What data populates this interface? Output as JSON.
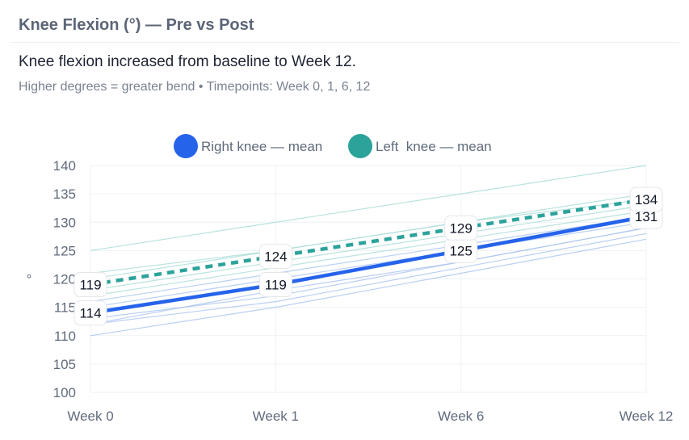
{
  "card": {
    "title": "Knee Flexion (°) — Pre vs Post",
    "subtitle": "Knee flexion increased from baseline to Week 12.",
    "caption": "Higher degrees = greater bend • Timepoints: Week 0, 1, 6, 12"
  },
  "chart_data": {
    "type": "line",
    "title": "Knee Flexion (°) — Pre vs Post",
    "categories": [
      "Week 0",
      "Week 1",
      "Week 6",
      "Week 12"
    ],
    "ylim": [
      100,
      140
    ],
    "yticks": [
      100,
      105,
      110,
      115,
      120,
      125,
      130,
      135,
      140
    ],
    "ylabel": "°",
    "grid": true,
    "legend_position": "top-center",
    "series": [
      {
        "name": "Right knee — mean",
        "color": "#2563eb",
        "style": "solid",
        "values": [
          114,
          119,
          125,
          131
        ]
      },
      {
        "name": "Left  knee — mean",
        "color": "#2ca39a",
        "style": "dashed",
        "values": [
          119,
          124,
          129,
          134
        ]
      }
    ],
    "individual_right": [
      [
        110,
        115,
        121,
        127
      ],
      [
        112,
        116,
        122,
        128
      ],
      [
        113,
        117,
        123,
        129
      ],
      [
        115,
        120,
        125,
        130
      ],
      [
        116,
        121,
        126,
        131
      ],
      [
        112,
        118,
        123,
        129
      ]
    ],
    "individual_left": [
      [
        117,
        122,
        127,
        132
      ],
      [
        118,
        123,
        128,
        133
      ],
      [
        120,
        125,
        130,
        135
      ],
      [
        121,
        125,
        130,
        134
      ],
      [
        125,
        130,
        135,
        140
      ]
    ]
  }
}
